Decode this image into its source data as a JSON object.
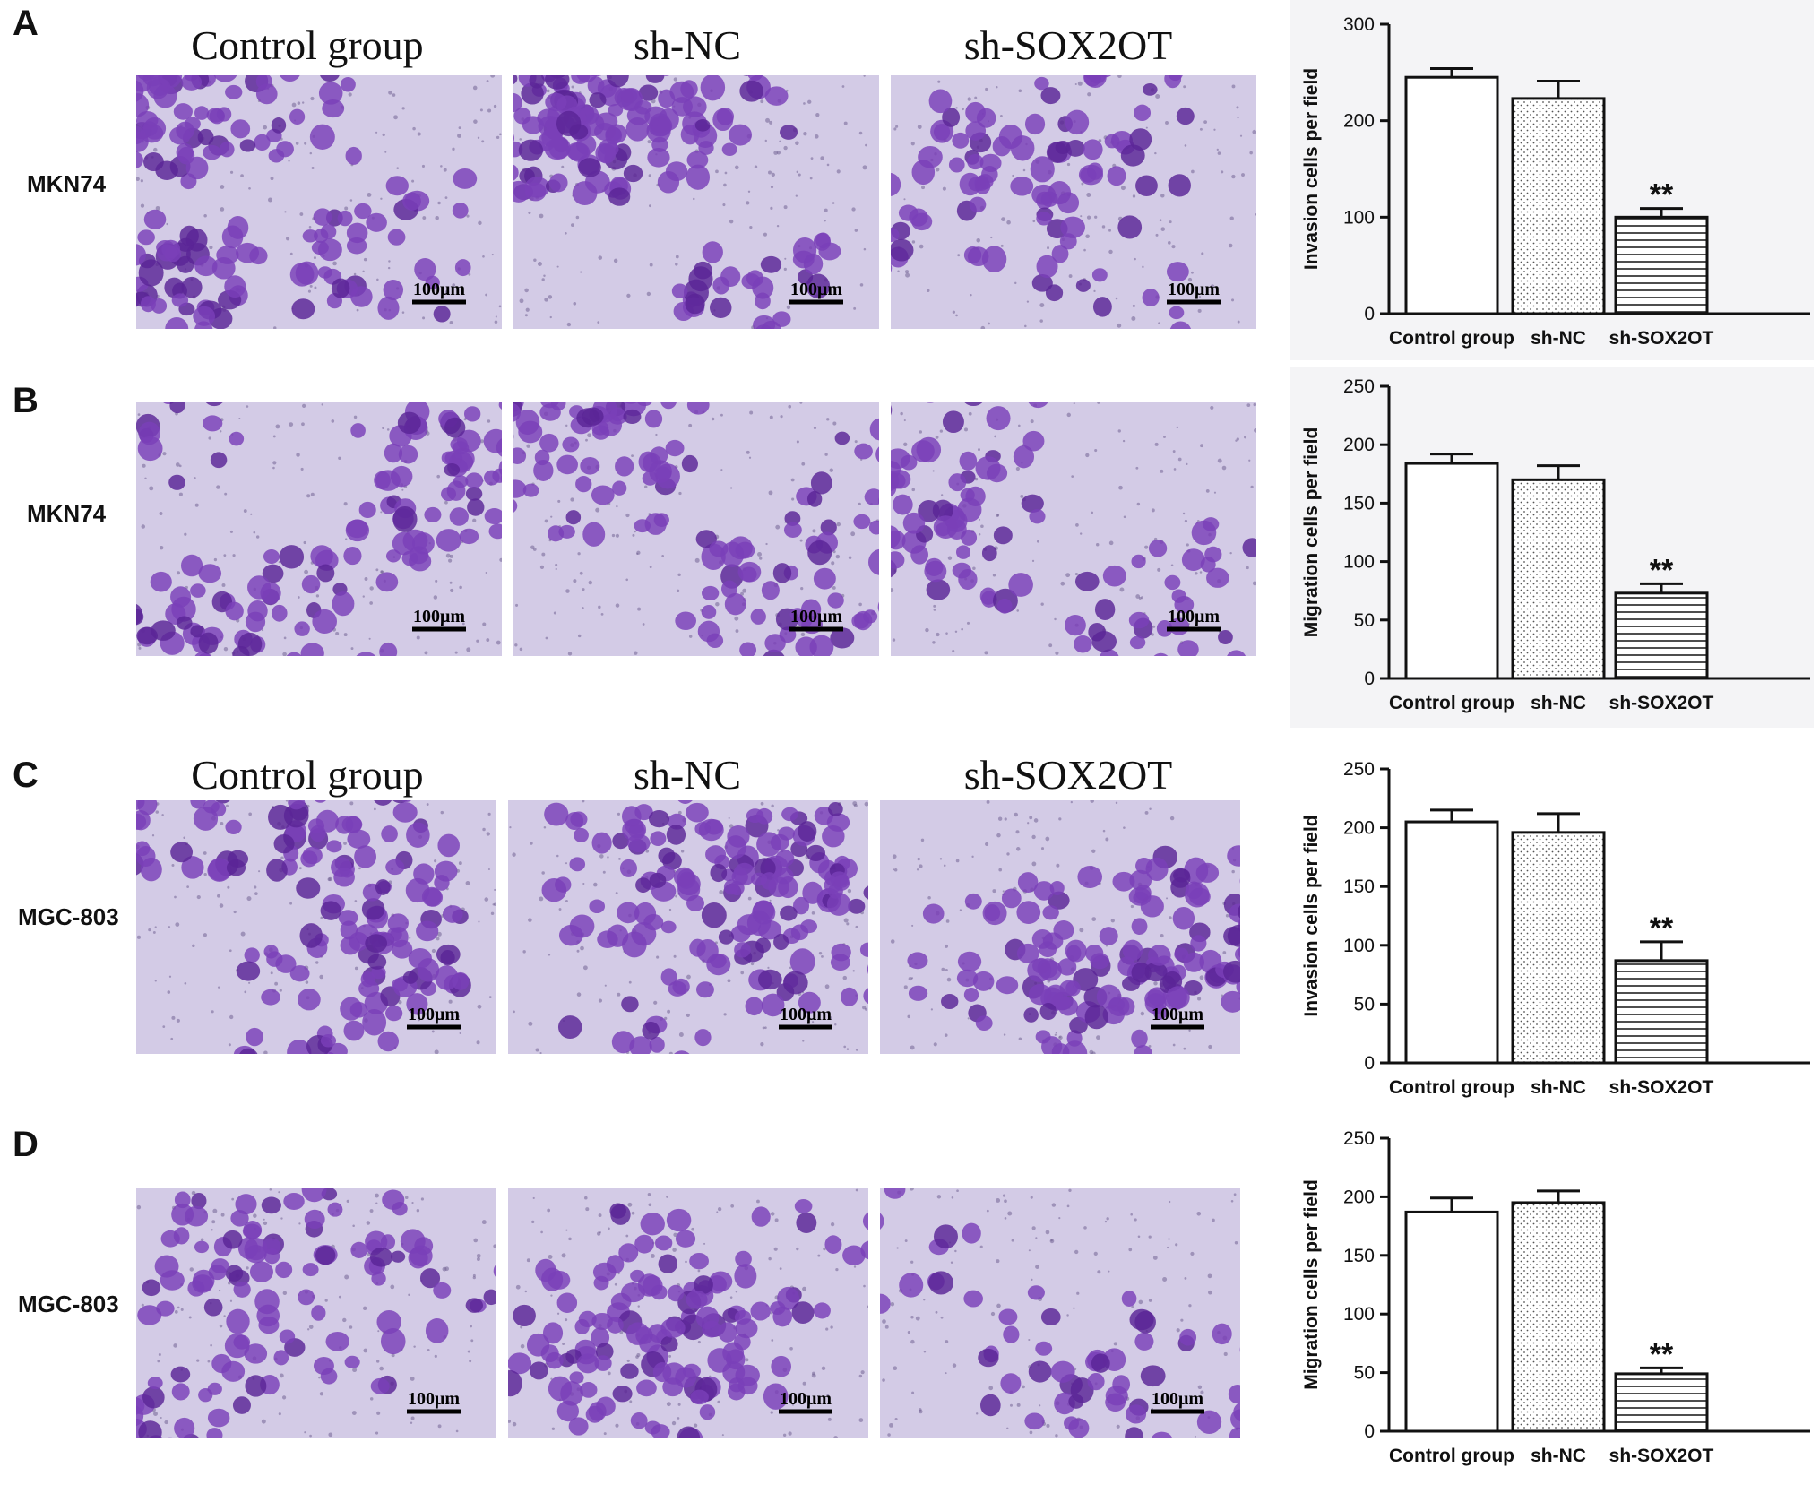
{
  "panels": [
    {
      "letter": "A",
      "cell_line": "MKN74",
      "conditions": [
        "Control group",
        "sh-NC",
        "sh-SOX2OT"
      ],
      "scale_label": "100μm"
    },
    {
      "letter": "B",
      "cell_line": "MKN74",
      "conditions": [],
      "scale_label": "100μm"
    },
    {
      "letter": "C",
      "cell_line": "MGC-803",
      "conditions": [
        "Control group",
        "sh-NC",
        "sh-SOX2OT"
      ],
      "scale_label": "100μm"
    },
    {
      "letter": "D",
      "cell_line": "MGC-803",
      "conditions": [],
      "scale_label": "100μm"
    }
  ],
  "colors": {
    "stain": "#7a3fb8",
    "stain_dark": "#5a2496",
    "background": "#d3cbe6",
    "bar_stroke": "#111111"
  },
  "chart_data": [
    {
      "type": "bar",
      "categories": [
        "Control group",
        "sh-NC",
        "sh-SOX2OT"
      ],
      "values": [
        245,
        223,
        100
      ],
      "errors": [
        9,
        18,
        9
      ],
      "patterns": [
        "none",
        "dots",
        "horizontal-lines"
      ],
      "significance": [
        "",
        "",
        "**"
      ],
      "ylabel": "Invasion cells per field",
      "ylim": [
        0,
        300
      ],
      "yticks": [
        0,
        100,
        200,
        300
      ],
      "grid": false
    },
    {
      "type": "bar",
      "categories": [
        "Control group",
        "sh-NC",
        "sh-SOX2OT"
      ],
      "values": [
        184,
        170,
        73
      ],
      "errors": [
        8,
        12,
        8
      ],
      "patterns": [
        "none",
        "dots",
        "horizontal-lines"
      ],
      "significance": [
        "",
        "",
        "**"
      ],
      "ylabel": "Migration cells per field",
      "ylim": [
        0,
        250
      ],
      "yticks": [
        0,
        50,
        100,
        150,
        200,
        250
      ],
      "grid": false
    },
    {
      "type": "bar",
      "categories": [
        "Control group",
        "sh-NC",
        "sh-SOX2OT"
      ],
      "values": [
        205,
        196,
        87
      ],
      "errors": [
        10,
        16,
        16
      ],
      "patterns": [
        "none",
        "dots",
        "horizontal-lines"
      ],
      "significance": [
        "",
        "",
        "**"
      ],
      "ylabel": "Invasion cells per field",
      "ylim": [
        0,
        250
      ],
      "yticks": [
        0,
        50,
        100,
        150,
        200,
        250
      ],
      "grid": false
    },
    {
      "type": "bar",
      "categories": [
        "Control group",
        "sh-NC",
        "sh-SOX2OT"
      ],
      "values": [
        187,
        195,
        49
      ],
      "errors": [
        12,
        10,
        5
      ],
      "patterns": [
        "none",
        "dots",
        "horizontal-lines"
      ],
      "significance": [
        "",
        "",
        "**"
      ],
      "ylabel": "Migration cells per field",
      "ylim": [
        0,
        250
      ],
      "yticks": [
        0,
        50,
        100,
        150,
        200,
        250
      ],
      "grid": false
    }
  ]
}
